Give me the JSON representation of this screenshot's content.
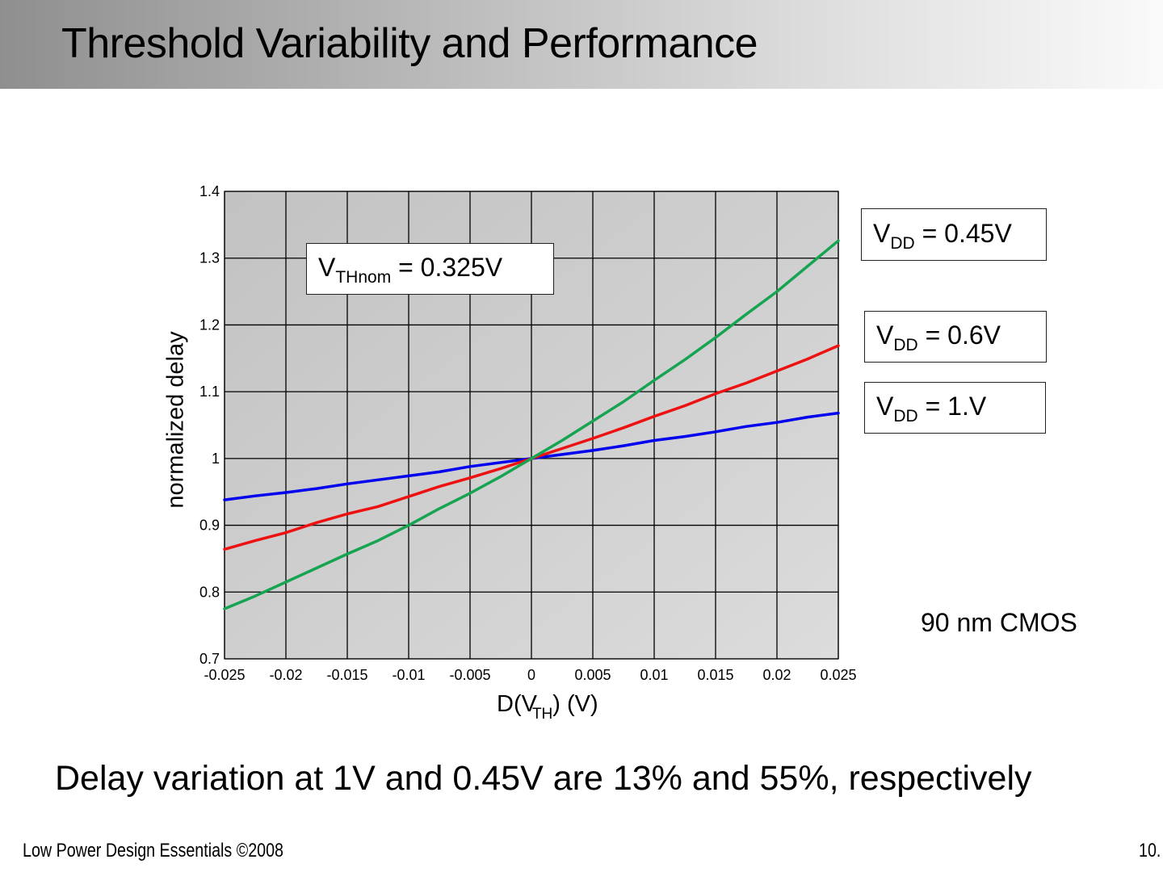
{
  "slide": {
    "title": "Threshold Variability and Performance",
    "summary": "Delay variation at 1V and 0.45V are 13% and 55%, respectively",
    "footer": "Low Power Design Essentials ©2008",
    "page_number": "10.",
    "process_note": "90 nm CMOS",
    "vth_label": {
      "symbol": "V",
      "subscript": "THnom",
      "value": " = 0.325V"
    }
  },
  "chart_data": {
    "type": "line",
    "title": "",
    "xlabel": {
      "prefix": "D(V",
      "subscript": "TH",
      "suffix": ") (V)"
    },
    "ylabel": "normalized delay",
    "xlim": [
      -0.025,
      0.025
    ],
    "ylim": [
      0.7,
      1.4
    ],
    "grid": true,
    "background": "#c8c8c8",
    "x_ticks": [
      -0.025,
      -0.02,
      -0.015,
      -0.01,
      -0.005,
      0,
      0.005,
      0.01,
      0.015,
      0.02,
      0.025
    ],
    "x_tick_labels": [
      "-0.025",
      "-0.02",
      "-0.015",
      "-0.01",
      "-0.005",
      "0",
      "0.005",
      "0.01",
      "0.015",
      "0.02",
      "0.025"
    ],
    "y_ticks": [
      0.7,
      0.8,
      0.9,
      1.0,
      1.1,
      1.2,
      1.3,
      1.4
    ],
    "y_tick_labels": [
      "0.7",
      "0.8",
      "0.9",
      "1",
      "1.1",
      "1.2",
      "1.3",
      "1.4"
    ],
    "x": [
      -0.025,
      -0.0225,
      -0.02,
      -0.0175,
      -0.015,
      -0.0125,
      -0.01,
      -0.0075,
      -0.005,
      -0.0025,
      0,
      0.0025,
      0.005,
      0.0075,
      0.01,
      0.0125,
      0.015,
      0.0175,
      0.02,
      0.0225,
      0.025
    ],
    "series": [
      {
        "name": "VDD = 1.V",
        "label_symbol": "V",
        "label_subscript": "DD",
        "label_value": " = 1.V",
        "color": "#0000ee",
        "values": [
          0.938,
          0.944,
          0.949,
          0.955,
          0.962,
          0.968,
          0.974,
          0.98,
          0.988,
          0.994,
          1.0,
          1.006,
          1.012,
          1.019,
          1.027,
          1.033,
          1.04,
          1.048,
          1.054,
          1.062,
          1.068
        ]
      },
      {
        "name": "VDD = 0.6V",
        "label_symbol": "V",
        "label_subscript": "DD",
        "label_value": " = 0.6V",
        "color": "#ee1111",
        "values": [
          0.864,
          0.877,
          0.889,
          0.904,
          0.917,
          0.928,
          0.943,
          0.958,
          0.971,
          0.985,
          1.0,
          1.015,
          1.03,
          1.046,
          1.063,
          1.079,
          1.097,
          1.113,
          1.131,
          1.149,
          1.169
        ]
      },
      {
        "name": "VDD = 0.45V",
        "label_symbol": "V",
        "label_subscript": "DD",
        "label_value": " = 0.45V",
        "color": "#17a452",
        "values": [
          0.775,
          0.794,
          0.815,
          0.836,
          0.857,
          0.877,
          0.9,
          0.925,
          0.948,
          0.973,
          1.0,
          1.027,
          1.056,
          1.085,
          1.117,
          1.148,
          1.181,
          1.216,
          1.25,
          1.288,
          1.326
        ]
      }
    ]
  }
}
